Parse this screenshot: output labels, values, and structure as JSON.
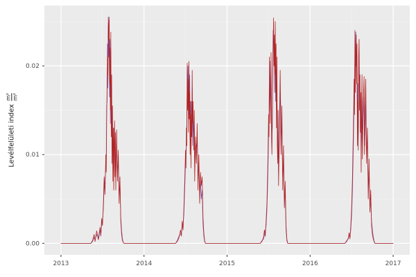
{
  "figure": {
    "background": "#FFFFFF",
    "panel_background": "#EBEBEB",
    "grid_major_color": "#FFFFFF",
    "grid_minor_color": "#F3F3F3",
    "axis_tick_color": "#333333",
    "tick_label_color": "#4D4D4D"
  },
  "y_axis_title": {
    "text": "Levélfelületi index",
    "numerator": "m²",
    "denominator": "m²"
  },
  "chart_data": {
    "type": "line",
    "title": "",
    "xlabel": "",
    "ylabel": "Levélfelületi index (m²/m²)",
    "grid": true,
    "legend": "none",
    "xlim": [
      2012.8,
      2017.2
    ],
    "ylim": [
      -0.0013,
      0.0268
    ],
    "x_major_ticks": [
      2013,
      2014,
      2015,
      2016,
      2017
    ],
    "x_tick_labels": [
      "2013",
      "2014",
      "2015",
      "2016",
      "2017"
    ],
    "x_minor_ticks": [
      2013.5,
      2014.5,
      2015.5,
      2016.5
    ],
    "y_major_ticks": [
      0,
      0.01,
      0.02
    ],
    "y_tick_labels": [
      "0.00",
      "0.01",
      "0.02"
    ],
    "y_minor_ticks": [
      0.005,
      0.015,
      0.025
    ],
    "values_scale": 0.001,
    "x": [
      2013.0,
      2013.1,
      2013.2,
      2013.3,
      2013.36,
      2013.38,
      2013.4,
      2013.41,
      2013.43,
      2013.45,
      2013.46,
      2013.47,
      2013.48,
      2013.49,
      2013.5,
      2013.51,
      2013.52,
      2013.53,
      2013.54,
      2013.545,
      2013.55,
      2013.555,
      2013.56,
      2013.565,
      2013.57,
      2013.575,
      2013.58,
      2013.585,
      2013.59,
      2013.595,
      2013.6,
      2013.605,
      2013.61,
      2013.615,
      2013.62,
      2013.625,
      2013.63,
      2013.635,
      2013.64,
      2013.645,
      2013.65,
      2013.655,
      2013.66,
      2013.67,
      2013.68,
      2013.69,
      2013.7,
      2013.71,
      2013.72,
      2013.73,
      2013.74,
      2013.75,
      2013.76,
      2013.8,
      2013.95,
      2014.1,
      2014.25,
      2014.38,
      2014.4,
      2014.42,
      2014.44,
      2014.45,
      2014.46,
      2014.47,
      2014.48,
      2014.49,
      2014.5,
      2014.505,
      2014.51,
      2014.515,
      2014.52,
      2014.525,
      2014.53,
      2014.535,
      2014.54,
      2014.545,
      2014.55,
      2014.555,
      2014.56,
      2014.565,
      2014.57,
      2014.575,
      2014.58,
      2014.585,
      2014.59,
      2014.6,
      2014.605,
      2014.61,
      2014.62,
      2014.63,
      2014.64,
      2014.65,
      2014.66,
      2014.67,
      2014.68,
      2014.69,
      2014.7,
      2014.71,
      2014.72,
      2014.73,
      2014.74,
      2014.78,
      2014.95,
      2015.15,
      2015.3,
      2015.4,
      2015.42,
      2015.44,
      2015.45,
      2015.46,
      2015.47,
      2015.48,
      2015.49,
      2015.5,
      2015.505,
      2015.51,
      2015.515,
      2015.52,
      2015.525,
      2015.53,
      2015.535,
      2015.54,
      2015.545,
      2015.55,
      2015.555,
      2015.56,
      2015.565,
      2015.57,
      2015.575,
      2015.58,
      2015.585,
      2015.59,
      2015.595,
      2015.6,
      2015.605,
      2015.61,
      2015.615,
      2015.62,
      2015.63,
      2015.64,
      2015.645,
      2015.65,
      2015.66,
      2015.67,
      2015.68,
      2015.69,
      2015.7,
      2015.71,
      2015.72,
      2015.73,
      2015.77,
      2015.95,
      2016.15,
      2016.3,
      2016.42,
      2016.44,
      2016.46,
      2016.47,
      2016.48,
      2016.49,
      2016.5,
      2016.51,
      2016.52,
      2016.53,
      2016.535,
      2016.54,
      2016.545,
      2016.55,
      2016.555,
      2016.56,
      2016.565,
      2016.57,
      2016.575,
      2016.58,
      2016.585,
      2016.59,
      2016.595,
      2016.6,
      2016.605,
      2016.61,
      2016.615,
      2016.62,
      2016.625,
      2016.63,
      2016.64,
      2016.65,
      2016.655,
      2016.66,
      2016.67,
      2016.68,
      2016.69,
      2016.7,
      2016.71,
      2016.72,
      2016.73,
      2016.74,
      2016.75,
      2016.76,
      2016.77,
      2016.78,
      2016.82,
      2016.9,
      2017.0
    ],
    "series": [
      {
        "name": "series-purple",
        "color": "#7852A9",
        "values": [
          0,
          0,
          0,
          0,
          0,
          0.2,
          0.7,
          0.4,
          1,
          0.6,
          1.2,
          1.5,
          0.8,
          2.2,
          2.6,
          3.8,
          6.5,
          6.8,
          9,
          9.5,
          15.5,
          16,
          22.5,
          17.5,
          24.5,
          21,
          25.5,
          16.5,
          23,
          13.5,
          22,
          14,
          17,
          10.5,
          13.5,
          8.5,
          11.5,
          7.2,
          13,
          11.8,
          9,
          10.8,
          7.5,
          11,
          8.2,
          9,
          5.5,
          6.5,
          3,
          1.4,
          0.5,
          0.1,
          0,
          0,
          0,
          0,
          0,
          0,
          0.3,
          0.8,
          1,
          1.2,
          1.8,
          2.2,
          3.2,
          6,
          9,
          10,
          11.5,
          13.5,
          17.5,
          18,
          20,
          14,
          18.5,
          16.5,
          19,
          12,
          14,
          10.5,
          16,
          13,
          17.5,
          11,
          14.5,
          12,
          13,
          9,
          10.5,
          11,
          11.5,
          8,
          8.5,
          6,
          7,
          5,
          6,
          2.2,
          0.8,
          0.2,
          0,
          0,
          0,
          0,
          0,
          0,
          0.3,
          0.5,
          1,
          1.4,
          2,
          3.8,
          7,
          12,
          14,
          18.5,
          20.5,
          15,
          16.5,
          19.5,
          14.5,
          12.5,
          13,
          20,
          24,
          23,
          22,
          21.5,
          19,
          23.5,
          16,
          20,
          15,
          18,
          13,
          11,
          12.5,
          8,
          11,
          17,
          16,
          12,
          13,
          7.5,
          9,
          5,
          5.5,
          1.5,
          0.3,
          0,
          0,
          0,
          0,
          0,
          0,
          0.3,
          0.5,
          0.9,
          0.8,
          1.5,
          3.2,
          6,
          10.5,
          16,
          16.5,
          21.5,
          19.5,
          23.8,
          20,
          21,
          17.5,
          13.5,
          18,
          13,
          19.5,
          21,
          17,
          16,
          14.5,
          14,
          10,
          13,
          16.5,
          11.5,
          14,
          16.5,
          12,
          11,
          16,
          10.5,
          11,
          6.5,
          7.5,
          4.5,
          4.5,
          2.5,
          1.5,
          0.8,
          0.3,
          0,
          0,
          0,
          0
        ]
      },
      {
        "name": "series-red",
        "color": "#B22222",
        "values": [
          0,
          0,
          0,
          0,
          0,
          0.3,
          1,
          0.2,
          1.4,
          0.4,
          0.9,
          1.8,
          1,
          2.8,
          2,
          4.5,
          7.5,
          5.5,
          10,
          8,
          14,
          17.5,
          21,
          19,
          25.5,
          23,
          25.2,
          18,
          22,
          15,
          23.8,
          12,
          19,
          9,
          15.5,
          7,
          13,
          6,
          11.5,
          13.8,
          7.5,
          12.5,
          6,
          12.8,
          7,
          10.5,
          4.5,
          7.5,
          2.5,
          1,
          0.3,
          0.1,
          0,
          0,
          0,
          0,
          0,
          0,
          0.2,
          0.6,
          1.5,
          0.8,
          2.5,
          1.5,
          4,
          7,
          10.5,
          8.5,
          13,
          11,
          20.3,
          15,
          18.5,
          12.5,
          20.5,
          14,
          17,
          10,
          16,
          8.5,
          14.5,
          12,
          19.5,
          13.5,
          16,
          10.5,
          15,
          7,
          12,
          9,
          13.5,
          6,
          10,
          4.5,
          8,
          6.5,
          7.5,
          3,
          1.2,
          0.3,
          0,
          0,
          0,
          0,
          0,
          0,
          0.2,
          0.7,
          1.5,
          0.8,
          2.5,
          4.5,
          8.5,
          14.5,
          12,
          21,
          16,
          13.5,
          18,
          21.5,
          12,
          10,
          15,
          18,
          22,
          25.4,
          20,
          23.5,
          17,
          25,
          19,
          22.5,
          13,
          21,
          11,
          9,
          15,
          6.5,
          13,
          19.5,
          14.5,
          10,
          15.5,
          6,
          11,
          4,
          7,
          2,
          0.5,
          0,
          0,
          0,
          0,
          0,
          0,
          0.2,
          0.6,
          1.2,
          0.5,
          2,
          4,
          7.5,
          12.5,
          18.5,
          14.5,
          24,
          17,
          21.5,
          23.5,
          18,
          22.5,
          11,
          16,
          10.5,
          21,
          23,
          15,
          19,
          12.5,
          17,
          8,
          15.5,
          19,
          9.5,
          16,
          18.8,
          10,
          13.5,
          18.5,
          9,
          13,
          5,
          9.5,
          3.5,
          6,
          2,
          1,
          0.5,
          0.2,
          0,
          0,
          0,
          0
        ]
      }
    ]
  }
}
